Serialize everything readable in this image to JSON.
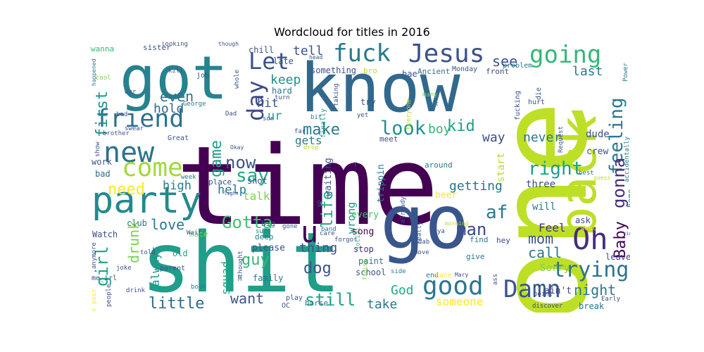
{
  "chart_data": {
    "type": "wordcloud",
    "title": "Wordcloud for titles in 2016",
    "colormap": "viridis",
    "background": "#ffffff",
    "words": [
      {
        "text": "time",
        "weight": 1.0,
        "color": "#440154"
      },
      {
        "text": "one",
        "weight": 0.86,
        "color": "#bddf26"
      },
      {
        "text": "shit",
        "weight": 0.82,
        "color": "#1f9e89"
      },
      {
        "text": "know",
        "weight": 0.66,
        "color": "#31688e"
      },
      {
        "text": "got",
        "weight": 0.6,
        "color": "#26828e"
      },
      {
        "text": "go",
        "weight": 0.56,
        "color": "#39568c"
      },
      {
        "text": "back",
        "weight": 0.52,
        "color": "#bddf26"
      },
      {
        "text": "party",
        "weight": 0.36,
        "color": "#23898e"
      },
      {
        "text": "new",
        "weight": 0.32,
        "color": "#2c728e"
      },
      {
        "text": "come",
        "weight": 0.32,
        "color": "#a0da39"
      },
      {
        "text": "friend",
        "weight": 0.3,
        "color": "#2c728e"
      },
      {
        "text": "Jesus",
        "weight": 0.3,
        "color": "#3b528b"
      },
      {
        "text": "fuck",
        "weight": 0.3,
        "color": "#2a788e"
      },
      {
        "text": "going",
        "weight": 0.3,
        "color": "#35b779"
      },
      {
        "text": "Damn",
        "weight": 0.28,
        "color": "#39568c"
      },
      {
        "text": "good",
        "weight": 0.28,
        "color": "#2a788e"
      },
      {
        "text": "Oh",
        "weight": 0.28,
        "color": "#472d7b"
      },
      {
        "text": "u",
        "weight": 0.26,
        "color": "#440154"
      },
      {
        "text": "day",
        "weight": 0.24,
        "color": "#3e4a89"
      },
      {
        "text": "Let",
        "weight": 0.24,
        "color": "#3b528b"
      },
      {
        "text": "trying",
        "weight": 0.24,
        "color": "#2c728e"
      },
      {
        "text": "look",
        "weight": 0.22,
        "color": "#21918c"
      },
      {
        "text": "feeling",
        "weight": 0.22,
        "color": "#2a788e"
      },
      {
        "text": "girl",
        "weight": 0.22,
        "color": "#20a486"
      },
      {
        "text": "Gotta",
        "weight": 0.2,
        "color": "#44bf70"
      },
      {
        "text": "right",
        "weight": 0.2,
        "color": "#1f9e89"
      },
      {
        "text": "gonna",
        "weight": 0.2,
        "color": "#472d7b"
      },
      {
        "text": "say",
        "weight": 0.2,
        "color": "#22a884"
      },
      {
        "text": "still",
        "weight": 0.2,
        "color": "#20a486"
      },
      {
        "text": "night",
        "weight": 0.18,
        "color": "#2a788e"
      },
      {
        "text": "Baby",
        "weight": 0.18,
        "color": "#440154"
      },
      {
        "text": "life",
        "weight": 0.18,
        "color": "#20a486"
      },
      {
        "text": "kid",
        "weight": 0.18,
        "color": "#1f9e89"
      },
      {
        "text": "af",
        "weight": 0.18,
        "color": "#2a788e"
      },
      {
        "text": "now",
        "weight": 0.18,
        "color": "#3b528b"
      },
      {
        "text": "game",
        "weight": 0.18,
        "color": "#1f9e89"
      },
      {
        "text": "first",
        "weight": 0.18,
        "color": "#21918c"
      },
      {
        "text": "make",
        "weight": 0.18,
        "color": "#2a788e"
      },
      {
        "text": "drunk",
        "weight": 0.18,
        "color": "#7ad151"
      },
      {
        "text": "dog",
        "weight": 0.18,
        "color": "#3b528b"
      },
      {
        "text": "man",
        "weight": 0.18,
        "color": "#3e4a89"
      },
      {
        "text": "mom",
        "weight": 0.18,
        "color": "#3b528b"
      },
      {
        "text": "guy",
        "weight": 0.16,
        "color": "#35b779"
      },
      {
        "text": "love",
        "weight": 0.16,
        "color": "#2a788e"
      },
      {
        "text": "need",
        "weight": 0.16,
        "color": "#fde725"
      },
      {
        "text": "little",
        "weight": 0.16,
        "color": "#31688e"
      },
      {
        "text": "want",
        "weight": 0.16,
        "color": "#3b528b"
      },
      {
        "text": "even",
        "weight": 0.16,
        "color": "#2c728e"
      },
      {
        "text": "hold",
        "weight": 0.14,
        "color": "#31688e"
      },
      {
        "text": "see",
        "weight": 0.14,
        "color": "#3b528b"
      },
      {
        "text": "last",
        "weight": 0.14,
        "color": "#2a788e"
      },
      {
        "text": "God",
        "weight": 0.14,
        "color": "#22a884"
      },
      {
        "text": "take",
        "weight": 0.14,
        "color": "#2a788e"
      },
      {
        "text": "thing",
        "weight": 0.14,
        "color": "#3b528b"
      },
      {
        "text": "call",
        "weight": 0.14,
        "color": "#2a788e"
      },
      {
        "text": "getting",
        "weight": 0.14,
        "color": "#2c728e"
      },
      {
        "text": "keep",
        "weight": 0.12,
        "color": "#21918c"
      },
      {
        "text": "tell",
        "weight": 0.12,
        "color": "#3b528b"
      },
      {
        "text": "boy",
        "weight": 0.12,
        "color": "#35b779"
      },
      {
        "text": "way",
        "weight": 0.12,
        "color": "#3e4a89"
      },
      {
        "text": "never",
        "weight": 0.12,
        "color": "#2a788e"
      },
      {
        "text": "Feel",
        "weight": 0.12,
        "color": "#472d7b"
      },
      {
        "text": "help",
        "weight": 0.12,
        "color": "#2a788e"
      },
      {
        "text": "talk",
        "weight": 0.12,
        "color": "#7ad151"
      },
      {
        "text": "high",
        "weight": 0.12,
        "color": "#2a788e"
      },
      {
        "text": "hit",
        "weight": 0.12,
        "color": "#3b528b"
      },
      {
        "text": "ur",
        "weight": 0.12,
        "color": "#1f9e89"
      },
      {
        "text": "always",
        "weight": 0.12,
        "color": "#21918c"
      },
      {
        "text": "squad",
        "weight": 0.12,
        "color": "#20a486"
      },
      {
        "text": "someone",
        "weight": 0.12,
        "color": "#fde725"
      },
      {
        "text": "Sorry",
        "weight": 0.1,
        "color": "#7ad151"
      },
      {
        "text": "start",
        "weight": 0.1,
        "color": "#b5de2b"
      },
      {
        "text": "wrong",
        "weight": 0.1,
        "color": "#21918c"
      },
      {
        "text": "gets",
        "weight": 0.1,
        "color": "#2a788e"
      },
      {
        "text": "crew",
        "weight": 0.08,
        "color": "#3b528b"
      },
      {
        "text": "dude",
        "weight": 0.08,
        "color": "#3b528b"
      },
      {
        "text": "ask",
        "weight": 0.08,
        "color": "#3e4a89"
      },
      {
        "text": "three",
        "weight": 0.08,
        "color": "#3e4a89"
      },
      {
        "text": "will",
        "weight": 0.08,
        "color": "#2a788e"
      },
      {
        "text": "ain't",
        "weight": 0.08,
        "color": "#414487"
      },
      {
        "text": "break",
        "weight": 0.08,
        "color": "#2a788e"
      },
      {
        "text": "home",
        "weight": 0.08,
        "color": "#2a788e"
      },
      {
        "text": "leave",
        "weight": 0.08,
        "color": "#414487"
      },
      {
        "text": "finally",
        "weight": 0.08,
        "color": "#1f9e89"
      },
      {
        "text": "shot",
        "weight": 0.08,
        "color": "#3b528b"
      },
      {
        "text": "place",
        "weight": 0.08,
        "color": "#3b528b"
      },
      {
        "text": "waiting",
        "weight": 0.08,
        "color": "#3b528b"
      },
      {
        "text": "trippin",
        "weight": 0.08,
        "color": "#2a788e"
      },
      {
        "text": "beer",
        "weight": 0.08,
        "color": "#fde725"
      },
      {
        "text": "every",
        "weight": 0.08,
        "color": "#44bf70"
      },
      {
        "text": "song",
        "weight": 0.08,
        "color": "#440154"
      },
      {
        "text": "stop",
        "weight": 0.08,
        "color": "#472d7b"
      },
      {
        "text": "paint",
        "weight": 0.08,
        "color": "#2a788e"
      },
      {
        "text": "school",
        "weight": 0.08,
        "color": "#3b528b"
      },
      {
        "text": "please",
        "weight": 0.08,
        "color": "#3b528b"
      },
      {
        "text": "family",
        "weight": 0.08,
        "color": "#2a788e"
      },
      {
        "text": "club",
        "weight": 0.08,
        "color": "#2a788e"
      },
      {
        "text": "Watch",
        "weight": 0.08,
        "color": "#3b528b"
      },
      {
        "text": "old",
        "weight": 0.08,
        "color": "#1f9e89"
      },
      {
        "text": "work",
        "weight": 0.08,
        "color": "#3b528b"
      },
      {
        "text": "bad",
        "weight": 0.08,
        "color": "#31688e"
      },
      {
        "text": "mate",
        "weight": 0.07,
        "color": "#7ad151"
      },
      {
        "text": "chill",
        "weight": 0.07,
        "color": "#3b528b"
      },
      {
        "text": "late",
        "weight": 0.07,
        "color": "#3b528b"
      },
      {
        "text": "hard",
        "weight": 0.07,
        "color": "#2a788e"
      },
      {
        "text": "something",
        "weight": 0.07,
        "color": "#3b528b"
      },
      {
        "text": "bro",
        "weight": 0.07,
        "color": "#b5de2b"
      },
      {
        "text": "bae",
        "weight": 0.07,
        "color": "#3b528b"
      },
      {
        "text": "Ancient",
        "weight": 0.07,
        "color": "#2a788e"
      },
      {
        "text": "Monday",
        "weight": 0.07,
        "color": "#3b528b"
      },
      {
        "text": "front",
        "weight": 0.07,
        "color": "#3e4a89"
      },
      {
        "text": "problem",
        "weight": 0.07,
        "color": "#2a788e"
      },
      {
        "text": "hey",
        "weight": 0.07,
        "color": "#3e4a89"
      },
      {
        "text": "find",
        "weight": 0.07,
        "color": "#2a788e"
      },
      {
        "text": "give",
        "weight": 0.07,
        "color": "#2a788e"
      },
      {
        "text": "end",
        "weight": 0.07,
        "color": "#2a788e"
      },
      {
        "text": "face",
        "weight": 0.07,
        "color": "#fde725"
      },
      {
        "text": "Mary",
        "weight": 0.06,
        "color": "#3e4a89"
      },
      {
        "text": "sister",
        "weight": 0.07,
        "color": "#3b528b"
      },
      {
        "text": "wanna",
        "weight": 0.07,
        "color": "#35b779"
      },
      {
        "text": "job",
        "weight": 0.07,
        "color": "#3b528b"
      },
      {
        "text": "around",
        "weight": 0.07,
        "color": "#2a788e"
      },
      {
        "text": "meet",
        "weight": 0.07,
        "color": "#3b528b"
      },
      {
        "text": "try",
        "weight": 0.07,
        "color": "#3b528b"
      },
      {
        "text": "Great",
        "weight": 0.06,
        "color": "#3b528b"
      },
      {
        "text": "big",
        "weight": 0.06,
        "color": "#3b528b"
      },
      {
        "text": "deep",
        "weight": 0.06,
        "color": "#2a788e"
      },
      {
        "text": "gone",
        "weight": 0.06,
        "color": "#3b528b"
      },
      {
        "text": "band",
        "weight": 0.06,
        "color": "#2a788e"
      },
      {
        "text": "bed",
        "weight": 0.06,
        "color": "#3b528b"
      },
      {
        "text": "brother",
        "weight": 0.06,
        "color": "#3b528b"
      },
      {
        "text": "parent",
        "weight": 0.06,
        "color": "#3b528b"
      },
      {
        "text": "book",
        "weight": 0.06,
        "color": "#2a788e"
      },
      {
        "text": "drink",
        "weight": 0.06,
        "color": "#3b528b"
      },
      {
        "text": "joke",
        "weight": 0.06,
        "color": "#3b528b"
      },
      {
        "text": "people",
        "weight": 0.06,
        "color": "#3b528b"
      },
      {
        "text": "me_irl",
        "weight": 0.06,
        "color": "#3b528b"
      },
      {
        "text": "dab",
        "weight": 0.06,
        "color": "#3b528b"
      },
      {
        "text": "Move",
        "weight": 0.06,
        "color": "#3b528b"
      },
      {
        "text": "social",
        "weight": 0.05,
        "color": "#44bf70"
      },
      {
        "text": "finish",
        "weight": 0.05,
        "color": "#7ad151"
      },
      {
        "text": "side",
        "weight": 0.05,
        "color": "#2a788e"
      },
      {
        "text": "care",
        "weight": 0.05,
        "color": "#3b528b"
      },
      {
        "text": "forgot",
        "weight": 0.05,
        "color": "#3b528b"
      },
      {
        "text": "play",
        "weight": 0.06,
        "color": "#3b528b"
      },
      {
        "text": "OC",
        "weight": 0.06,
        "color": "#3b528b"
      },
      {
        "text": "thought",
        "weight": 0.05,
        "color": "#3b528b"
      },
      {
        "text": "sure",
        "weight": 0.05,
        "color": "#2a788e"
      },
      {
        "text": "yo",
        "weight": 0.05,
        "color": "#3b528b"
      },
      {
        "text": "ass",
        "weight": 0.05,
        "color": "#3b528b"
      },
      {
        "text": "really",
        "weight": 0.05,
        "color": "#3b528b"
      },
      {
        "text": "morning",
        "weight": 0.05,
        "color": "#b5de2b"
      },
      {
        "text": "ya",
        "weight": 0.05,
        "color": "#3b528b"
      },
      {
        "text": "discover",
        "weight": 0.05,
        "color": "#3e4a89"
      },
      {
        "text": "point",
        "weight": 0.05,
        "color": "#3b528b"
      },
      {
        "text": "Early",
        "weight": 0.05,
        "color": "#3b528b"
      },
      {
        "text": "went",
        "weight": 0.05,
        "color": "#fde725"
      },
      {
        "text": "best",
        "weight": 0.05,
        "color": "#2a788e"
      },
      {
        "text": "Request",
        "weight": 0.05,
        "color": "#3b528b"
      },
      {
        "text": "accidentally",
        "weight": 0.05,
        "color": "#2a788e"
      },
      {
        "text": "fucking",
        "weight": 0.05,
        "color": "#3b528b"
      },
      {
        "text": "hurt",
        "weight": 0.05,
        "color": "#3b528b"
      },
      {
        "text": "die",
        "weight": 0.05,
        "color": "#3b528b"
      },
      {
        "text": "Everyone",
        "weight": 0.05,
        "color": "#b5de2b"
      },
      {
        "text": "many",
        "weight": 0.05,
        "color": "#7ad151"
      },
      {
        "text": "put",
        "weight": 0.05,
        "color": "#2a788e"
      },
      {
        "text": "yet",
        "weight": 0.05,
        "color": "#3b528b"
      },
      {
        "text": "taking",
        "weight": 0.05,
        "color": "#3b528b"
      },
      {
        "text": "turn",
        "weight": 0.05,
        "color": "#3b528b"
      },
      {
        "text": "bit",
        "weight": 0.05,
        "color": "#2a788e"
      },
      {
        "text": "far",
        "weight": 0.05,
        "color": "#3b528b"
      },
      {
        "text": "drop",
        "weight": 0.05,
        "color": "#b5de2b"
      },
      {
        "text": "son",
        "weight": 0.05,
        "color": "#3b528b"
      },
      {
        "text": "Dad",
        "weight": 0.05,
        "color": "#3b528b"
      },
      {
        "text": "whole",
        "weight": 0.05,
        "color": "#3b528b"
      },
      {
        "text": "George",
        "weight": 0.05,
        "color": "#2a788e"
      },
      {
        "text": "Okay",
        "weight": 0.05,
        "color": "#3b528b"
      },
      {
        "text": "week",
        "weight": 0.05,
        "color": "#2a788e"
      },
      {
        "text": "kill",
        "weight": 0.05,
        "color": "#3b528b"
      },
      {
        "text": "cool",
        "weight": 0.05,
        "color": "#7ad151"
      },
      {
        "text": "war",
        "weight": 0.05,
        "color": "#3b528b"
      },
      {
        "text": "swear",
        "weight": 0.05,
        "color": "#3b528b"
      },
      {
        "text": "show",
        "weight": 0.05,
        "color": "#3b528b"
      },
      {
        "text": "happened",
        "weight": 0.05,
        "color": "#2a788e"
      },
      {
        "text": "looking",
        "weight": 0.05,
        "color": "#3b528b"
      },
      {
        "text": "though",
        "weight": 0.05,
        "color": "#3b528b"
      },
      {
        "text": "head",
        "weight": 0.05,
        "color": "#3b528b"
      },
      {
        "text": "Power",
        "weight": 0.05,
        "color": "#2a788e"
      },
      {
        "text": "guess",
        "weight": 0.04,
        "color": "#b5de2b"
      },
      {
        "text": "ride",
        "weight": 0.04,
        "color": "#3b528b"
      },
      {
        "text": "light",
        "weight": 0.04,
        "color": "#3b528b"
      },
      {
        "text": "Wait",
        "weight": 0.05,
        "color": "#3b528b"
      },
      {
        "text": "told",
        "weight": 0.05,
        "color": "#3b528b"
      },
      {
        "text": "anymore",
        "weight": 0.05,
        "color": "#3b528b"
      },
      {
        "text": "x post",
        "weight": 0.05,
        "color": "#fde725"
      },
      {
        "text": "T",
        "weight": 0.04,
        "color": "#3b528b"
      },
      {
        "text": "already",
        "weight": 0.05,
        "color": "#3b528b"
      },
      {
        "text": "M",
        "weight": 0.04,
        "color": "#3b528b"
      },
      {
        "text": "horse",
        "weight": 0.05,
        "color": "#2a788e"
      }
    ]
  }
}
